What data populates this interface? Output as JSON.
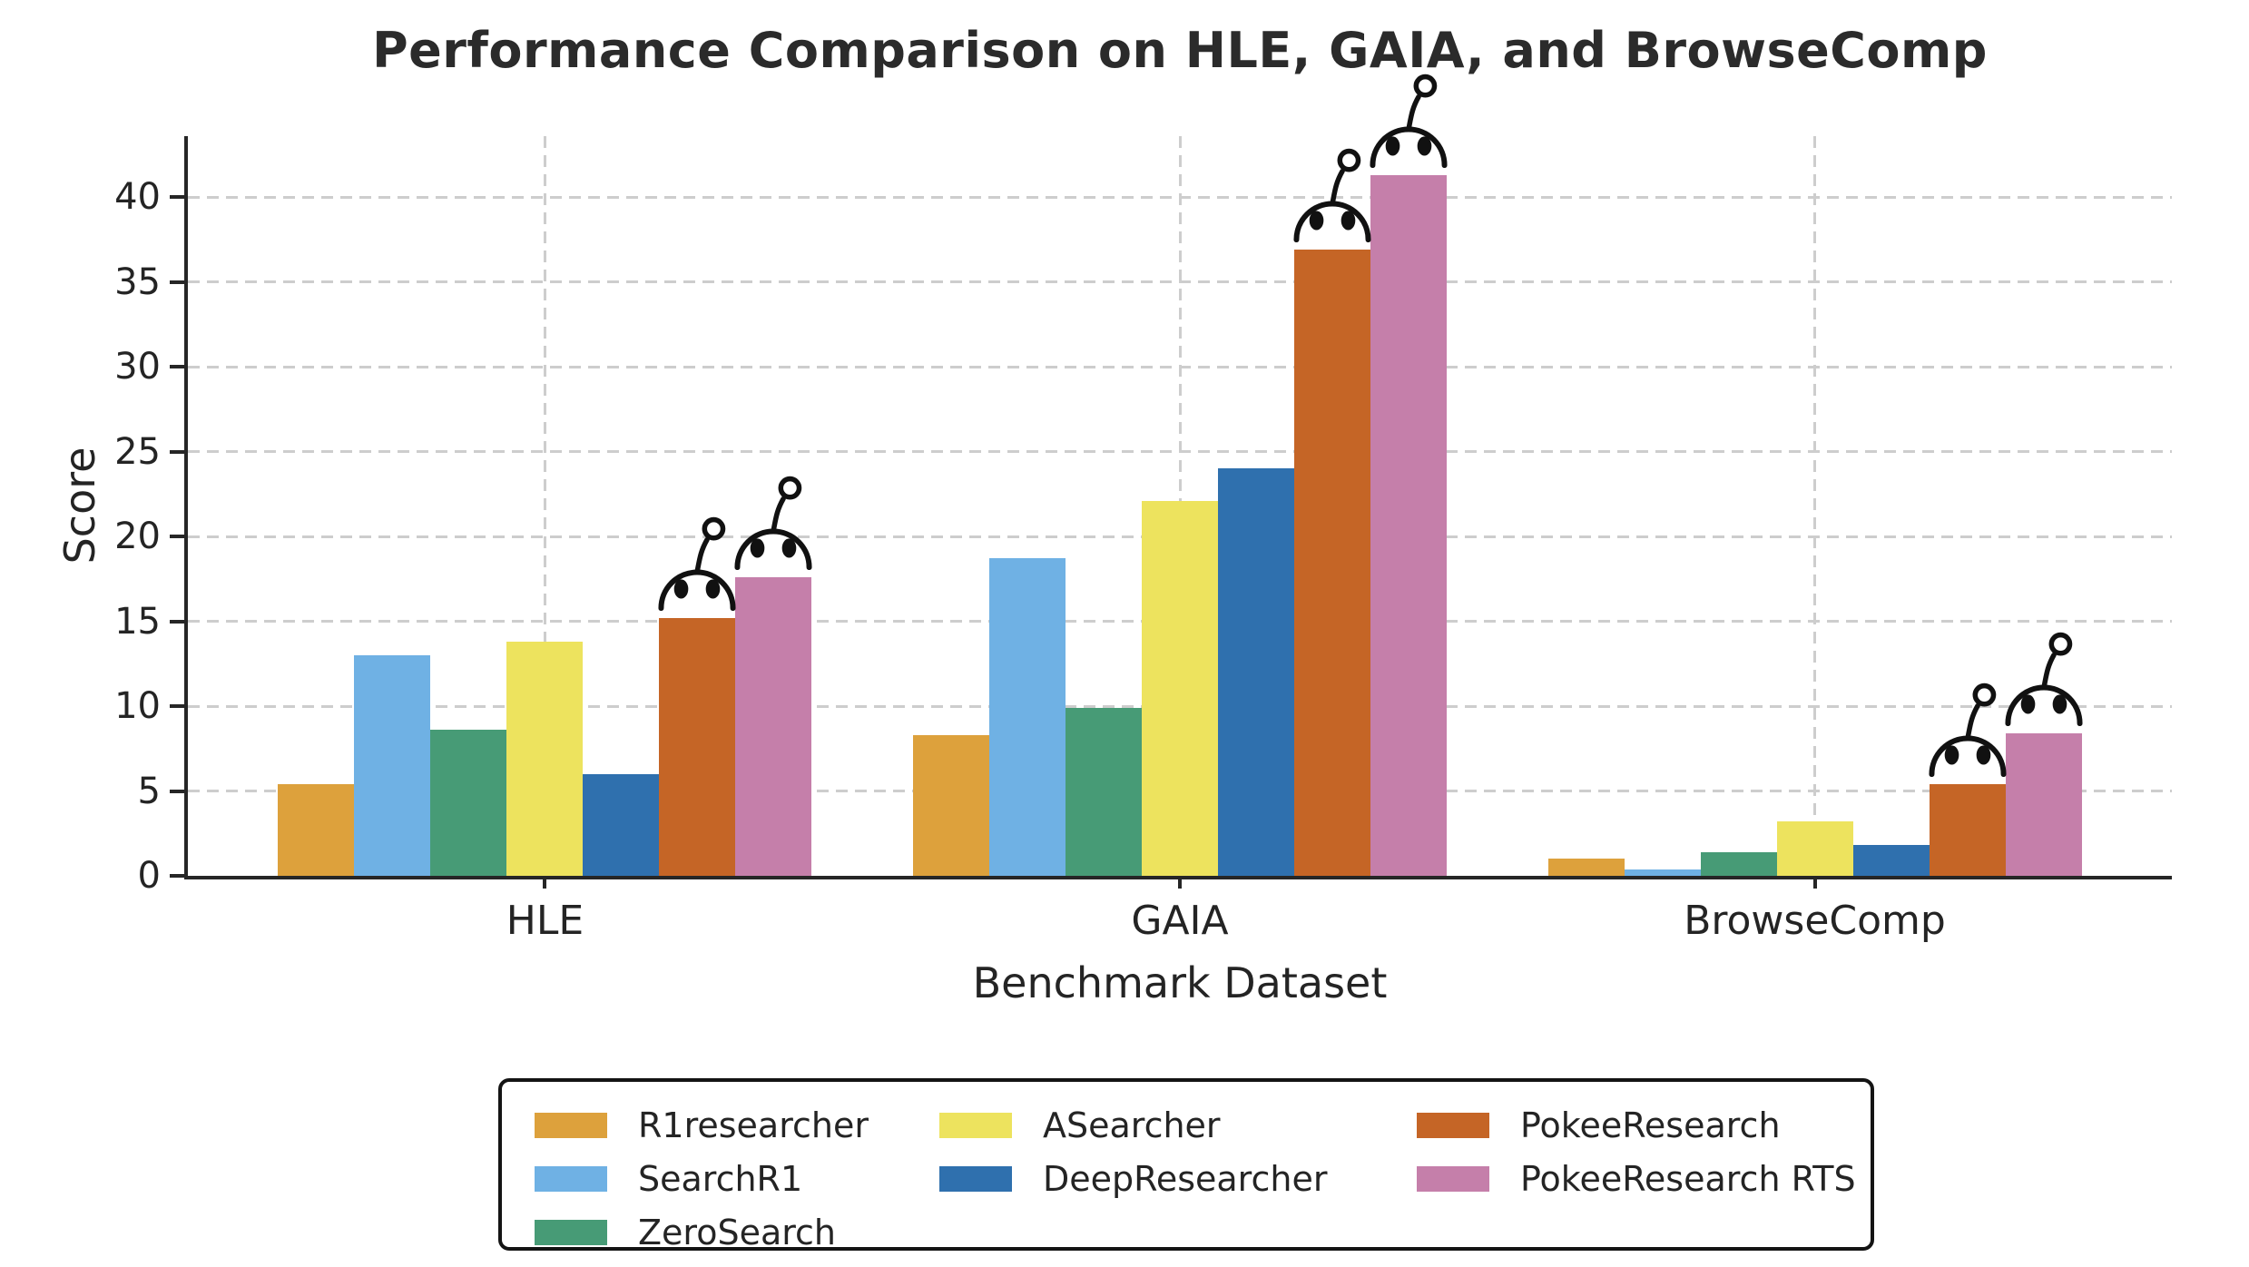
{
  "title": "Performance Comparison on HLE, GAIA, and BrowseComp",
  "icons": {
    "mascot": "pokee-robot-head-icon"
  },
  "chart_data": {
    "type": "bar",
    "title": "Performance Comparison on HLE, GAIA, and BrowseComp",
    "xlabel": "Benchmark Dataset",
    "ylabel": "Score",
    "categories": [
      "HLE",
      "GAIA",
      "BrowseComp"
    ],
    "series": [
      {
        "name": "R1researcher",
        "color": "#DDA13C",
        "values": [
          5.4,
          8.3,
          1.0
        ],
        "mascot": false
      },
      {
        "name": "SearchR1",
        "color": "#6FB1E4",
        "values": [
          13.0,
          18.7,
          0.4
        ],
        "mascot": false
      },
      {
        "name": "ZeroSearch",
        "color": "#479B76",
        "values": [
          8.6,
          9.9,
          1.4
        ],
        "mascot": false
      },
      {
        "name": "ASearcher",
        "color": "#EDE35E",
        "values": [
          13.8,
          22.1,
          3.2
        ],
        "mascot": false
      },
      {
        "name": "DeepResearcher",
        "color": "#2F70AE",
        "values": [
          6.0,
          24.0,
          1.8
        ],
        "mascot": false
      },
      {
        "name": "PokeeResearch",
        "color": "#C56526",
        "values": [
          15.2,
          36.9,
          5.4
        ],
        "mascot": true
      },
      {
        "name": "PokeeResearch RTS",
        "color": "#C57FAA",
        "values": [
          17.6,
          41.3,
          8.4
        ],
        "mascot": true
      }
    ],
    "yticks": [
      0,
      5,
      10,
      15,
      20,
      25,
      30,
      35,
      40
    ],
    "ylim": [
      0,
      43.6
    ],
    "grid": "dashed",
    "grid_color": "#cdcdcd",
    "spine_color": "#262626",
    "legend_position": "bottom-center",
    "legend_columns": [
      [
        "R1researcher",
        "SearchR1",
        "ZeroSearch"
      ],
      [
        "ASearcher",
        "DeepResearcher"
      ],
      [
        "PokeeResearch",
        "PokeeResearch RTS"
      ]
    ]
  }
}
